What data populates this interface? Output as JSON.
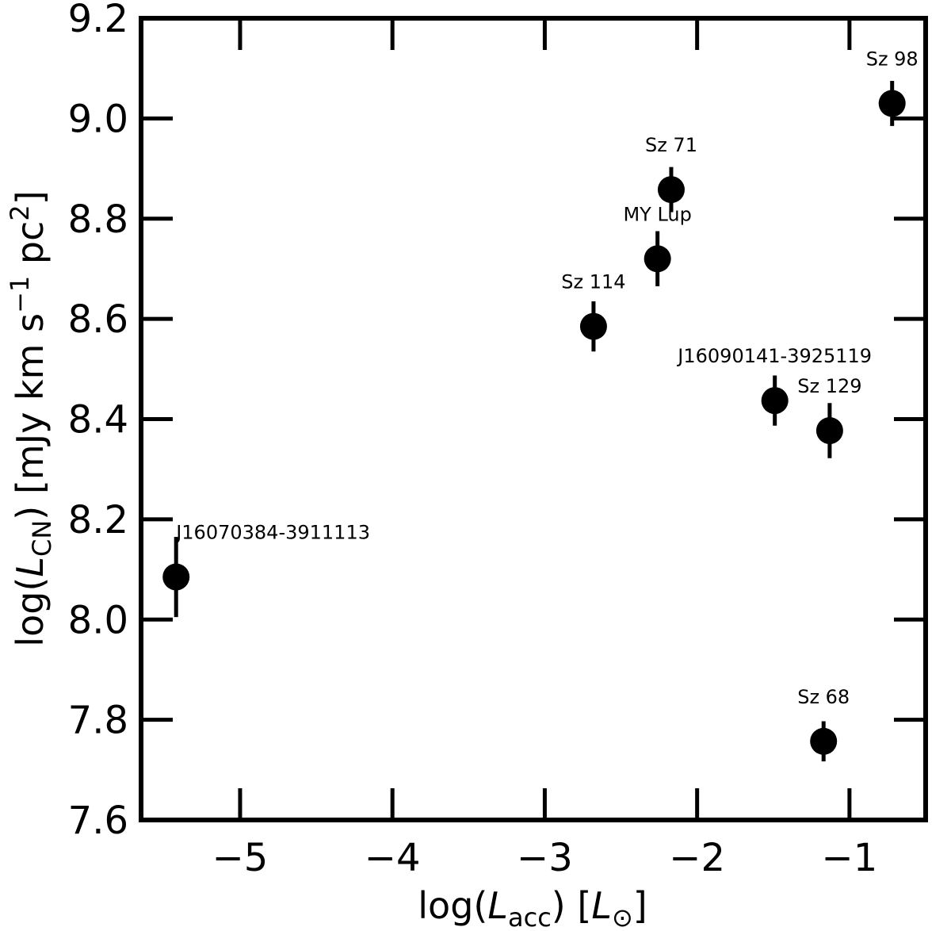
{
  "chart_data": {
    "type": "scatter",
    "title": "",
    "xlabel": {
      "prefix": "log(",
      "var": "L",
      "sub": "acc",
      "suffix": ") [",
      "unit_var": "L",
      "unit_sub": "⊙",
      "close": "]"
    },
    "ylabel": {
      "prefix": "log(",
      "var": "L",
      "sub": "CN",
      "suffix": ") [mJy km s",
      "exp1": "−1",
      "mid": " pc",
      "exp2": "2",
      "close": "]"
    },
    "xlim": [
      -5.65,
      -0.5
    ],
    "ylim": [
      7.6,
      9.2
    ],
    "xticks": [
      -5,
      -4,
      -3,
      -2,
      -1
    ],
    "xtick_labels": [
      "−5",
      "−4",
      "−3",
      "−2",
      "−1"
    ],
    "yticks": [
      7.6,
      7.8,
      8.0,
      8.2,
      8.4,
      8.6,
      8.8,
      9.0,
      9.2
    ],
    "ytick_labels": [
      "7.6",
      "7.8",
      "8.0",
      "8.2",
      "8.4",
      "8.6",
      "8.8",
      "9.0",
      "9.2"
    ],
    "grid": false,
    "points": [
      {
        "label": "J16070384-3911113",
        "x": -5.42,
        "y": 8.085,
        "yerr_low": 0.08,
        "yerr_high": 0.08
      },
      {
        "label": "Sz 114",
        "x": -2.68,
        "y": 8.585,
        "yerr_low": 0.05,
        "yerr_high": 0.05
      },
      {
        "label": "MY Lup",
        "x": -2.26,
        "y": 8.72,
        "yerr_low": 0.055,
        "yerr_high": 0.055
      },
      {
        "label": "Sz 71",
        "x": -2.17,
        "y": 8.858,
        "yerr_low": 0.045,
        "yerr_high": 0.045
      },
      {
        "label": "J16090141-3925119",
        "x": -1.49,
        "y": 8.437,
        "yerr_low": 0.05,
        "yerr_high": 0.05
      },
      {
        "label": "Sz 129",
        "x": -1.13,
        "y": 8.377,
        "yerr_low": 0.055,
        "yerr_high": 0.055
      },
      {
        "label": "Sz 68",
        "x": -1.17,
        "y": 7.757,
        "yerr_low": 0.04,
        "yerr_high": 0.04
      },
      {
        "label": "Sz 98",
        "x": -0.72,
        "y": 9.03,
        "yerr_low": 0.045,
        "yerr_high": 0.045
      }
    ]
  }
}
